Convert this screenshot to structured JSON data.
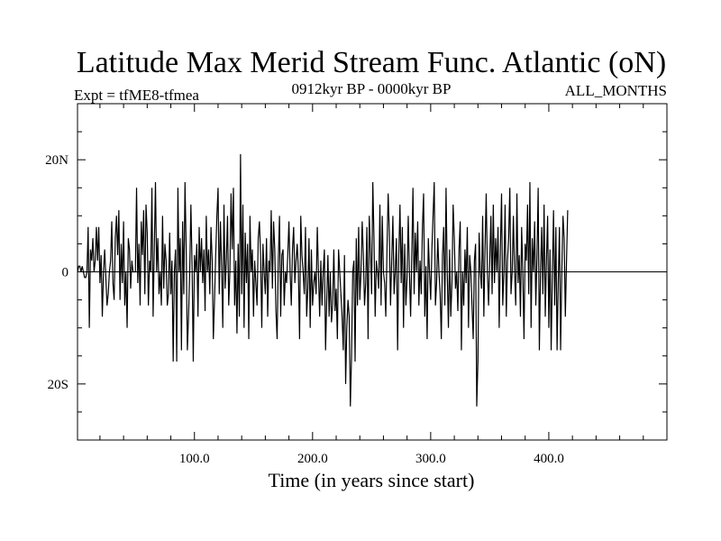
{
  "chart_data": {
    "type": "line",
    "title": "Latitude Max Merid Stream Func. Atlantic (oN)",
    "subtitle_left": "Expt = tfME8-tfmea",
    "subtitle_center": "0912kyr BP - 0000kyr BP",
    "subtitle_right": "ALL_MONTHS",
    "xlabel": "Time (in years since start)",
    "ylabel": "",
    "xlim": [
      1,
      500
    ],
    "ylim": [
      -30,
      30
    ],
    "x_ticks": [
      100,
      200,
      300,
      400
    ],
    "x_tick_labels": [
      "100.0",
      "200.0",
      "300.0",
      "400.0"
    ],
    "y_ticks": [
      -20,
      0,
      20
    ],
    "y_tick_labels": [
      "20S",
      "0",
      "20N"
    ],
    "grid": false,
    "series": [
      {
        "name": "latitude_max_stream_function",
        "color": "#000000",
        "x_start": 1,
        "x_step": 1,
        "values": [
          0,
          1,
          1,
          0,
          1,
          0,
          -1,
          -1,
          0,
          8,
          -10,
          4,
          2,
          6,
          0,
          2,
          8,
          2,
          8,
          -2,
          3,
          -8,
          0,
          4,
          -1,
          -6,
          -4,
          0,
          2,
          9,
          -2,
          -5,
          6,
          10,
          3,
          11,
          -5,
          5,
          -2,
          9,
          -6,
          0,
          -10,
          6,
          4,
          -3,
          2,
          0,
          0,
          0,
          15,
          -2,
          5,
          -6,
          9,
          3,
          11,
          -4,
          12,
          7,
          -6,
          2,
          0,
          15,
          -8,
          4,
          16,
          0,
          6,
          -4,
          0,
          -6,
          10,
          -3,
          5,
          2,
          -6,
          -4,
          7,
          -4,
          2,
          -16,
          0,
          4,
          -16,
          15,
          0,
          6,
          -14,
          9,
          -4,
          16,
          4,
          -14,
          -8,
          0,
          12,
          1,
          -16,
          3,
          0,
          5,
          -8,
          8,
          0,
          6,
          -2,
          4,
          -7,
          10,
          0,
          4,
          -4,
          8,
          2,
          -12,
          -5,
          3,
          10,
          15,
          -4,
          9,
          1,
          -10,
          12,
          -3,
          2,
          10,
          -6,
          0,
          14,
          4,
          15,
          -6,
          2,
          -11,
          5,
          -8,
          21,
          -4,
          12,
          -10,
          7,
          -2,
          5,
          -12,
          10,
          0,
          4,
          -8,
          2,
          -2,
          -6,
          6,
          9,
          3,
          -10,
          5,
          0,
          -4,
          6,
          -8,
          2,
          0,
          11,
          -3,
          9,
          4,
          -7,
          -12,
          2,
          10,
          -8,
          3,
          4,
          -6,
          0,
          -2,
          3,
          9,
          0,
          -6,
          4,
          8,
          -2,
          2,
          5,
          0,
          -12,
          10,
          3,
          0,
          -4,
          8,
          -8,
          -3,
          6,
          -10,
          4,
          -6,
          -2,
          0,
          -4,
          8,
          0,
          -8,
          2,
          -6,
          0,
          4,
          -14,
          -5,
          3,
          -8,
          0,
          -9,
          -6,
          4,
          -7,
          -3,
          -12,
          4,
          0,
          -4,
          -8,
          -14,
          3,
          -20,
          -10,
          -5,
          -8,
          -24,
          -15,
          0,
          2,
          -16,
          6,
          -6,
          8,
          -5,
          0,
          9,
          3,
          -6,
          -2,
          8,
          -12,
          10,
          4,
          -4,
          16,
          6,
          -8,
          2,
          0,
          -3,
          12,
          -6,
          10,
          0,
          -2,
          -8,
          4,
          14,
          7,
          -6,
          2,
          10,
          -4,
          0,
          6,
          -14,
          3,
          12,
          -2,
          8,
          -10,
          5,
          -6,
          -1,
          10,
          0,
          -8,
          3,
          15,
          -4,
          7,
          0,
          9,
          -6,
          2,
          -4,
          8,
          14,
          -8,
          1,
          -12,
          6,
          0,
          -5,
          4,
          10,
          16,
          -6,
          -2,
          6,
          0,
          -4,
          -12,
          3,
          8,
          -6,
          15,
          0,
          -10,
          4,
          -8,
          -2,
          12,
          6,
          -3,
          0,
          -7,
          4,
          9,
          -14,
          0,
          -6,
          4,
          -2,
          8,
          -10,
          3,
          0,
          -6,
          -12,
          2,
          5,
          -24,
          -16,
          7,
          0,
          -3,
          10,
          -8,
          4,
          14,
          0,
          -6,
          2,
          10,
          -4,
          12,
          -2,
          6,
          0,
          8,
          -10,
          4,
          14,
          -6,
          0,
          12,
          -8,
          2,
          6,
          15,
          -4,
          0,
          10,
          0,
          -6,
          14,
          -2,
          3,
          -8,
          8,
          0,
          -12,
          5,
          2,
          12,
          -4,
          16,
          -10,
          6,
          0,
          9,
          -6,
          3,
          15,
          -14,
          0,
          8,
          -4,
          12,
          -8,
          2,
          10,
          -10,
          4,
          -14,
          0,
          11,
          -6,
          8,
          -14,
          -2,
          8,
          -14,
          0,
          10,
          6,
          -8,
          2,
          11
        ]
      }
    ]
  }
}
